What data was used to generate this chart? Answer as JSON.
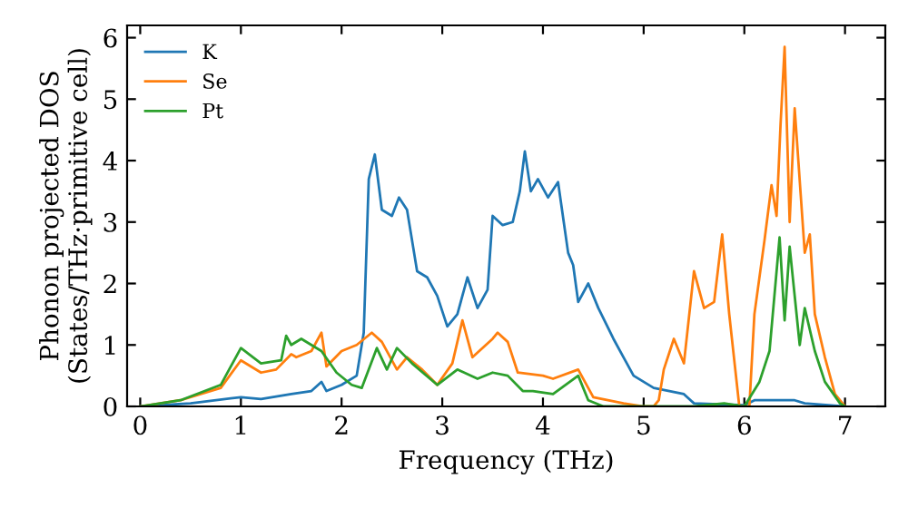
{
  "chart_data": {
    "type": "line",
    "xlabel": "Frequency (THz)",
    "ylabel": "Phonon projected DOS\n(States/THz·primitive cell)",
    "xlim": [
      -0.13,
      7.4
    ],
    "ylim": [
      0,
      6.2
    ],
    "xticks": [
      0,
      1,
      2,
      3,
      4,
      5,
      6,
      7
    ],
    "yticks": [
      0,
      1,
      2,
      3,
      4,
      5,
      6
    ],
    "grid": false,
    "legend": "top left",
    "line_style": "solid",
    "marker": "none",
    "series": [
      {
        "name": "K",
        "color": "#1f77b4",
        "x": [
          0,
          0.5,
          1.0,
          1.2,
          1.5,
          1.7,
          1.8,
          1.85,
          2.0,
          2.15,
          2.22,
          2.27,
          2.33,
          2.4,
          2.5,
          2.57,
          2.65,
          2.75,
          2.85,
          2.95,
          3.05,
          3.15,
          3.25,
          3.35,
          3.45,
          3.5,
          3.6,
          3.7,
          3.77,
          3.82,
          3.88,
          3.95,
          4.05,
          4.15,
          4.25,
          4.3,
          4.35,
          4.45,
          4.55,
          4.7,
          4.8,
          4.9,
          5.1,
          5.4,
          5.5,
          6.0,
          6.1,
          6.5,
          6.6,
          7.0
        ],
        "values": [
          0,
          0.05,
          0.15,
          0.12,
          0.2,
          0.25,
          0.4,
          0.25,
          0.35,
          0.5,
          1.2,
          3.7,
          4.1,
          3.2,
          3.1,
          3.4,
          3.2,
          2.2,
          2.1,
          1.8,
          1.3,
          1.5,
          2.1,
          1.6,
          1.9,
          3.1,
          2.95,
          3.0,
          3.5,
          4.15,
          3.5,
          3.7,
          3.4,
          3.65,
          2.5,
          2.3,
          1.7,
          2.0,
          1.6,
          1.1,
          0.8,
          0.5,
          0.3,
          0.2,
          0.05,
          0.02,
          0.1,
          0.1,
          0.05,
          0
        ]
      },
      {
        "name": "Se",
        "color": "#ff7f0e",
        "x": [
          0,
          0.4,
          0.8,
          1.0,
          1.2,
          1.35,
          1.5,
          1.55,
          1.7,
          1.8,
          1.85,
          2.0,
          2.15,
          2.3,
          2.4,
          2.55,
          2.65,
          2.8,
          2.95,
          3.1,
          3.2,
          3.3,
          3.5,
          3.55,
          3.65,
          3.75,
          4.0,
          4.1,
          4.35,
          4.5,
          4.8,
          5.0,
          5.1,
          5.15,
          5.2,
          5.3,
          5.4,
          5.5,
          5.6,
          5.7,
          5.78,
          5.85,
          5.95,
          6.05,
          6.1,
          6.2,
          6.27,
          6.32,
          6.36,
          6.4,
          6.45,
          6.5,
          6.6,
          6.65,
          6.7,
          6.8,
          6.9,
          7.0
        ],
        "values": [
          0,
          0.1,
          0.3,
          0.75,
          0.55,
          0.6,
          0.85,
          0.8,
          0.9,
          1.2,
          0.65,
          0.9,
          1.0,
          1.2,
          1.05,
          0.6,
          0.8,
          0.6,
          0.35,
          0.7,
          1.4,
          0.8,
          1.1,
          1.2,
          1.05,
          0.55,
          0.5,
          0.45,
          0.6,
          0.15,
          0.05,
          0,
          0,
          0.1,
          0.6,
          1.1,
          0.7,
          2.2,
          1.6,
          1.7,
          2.8,
          1.5,
          0,
          0,
          1.5,
          2.7,
          3.6,
          3.1,
          4.6,
          5.85,
          3.0,
          4.85,
          2.5,
          2.8,
          1.5,
          0.8,
          0.2,
          0
        ]
      },
      {
        "name": "Pt",
        "color": "#2ca02c",
        "x": [
          0,
          0.4,
          0.8,
          1.0,
          1.2,
          1.4,
          1.45,
          1.5,
          1.6,
          1.8,
          1.95,
          2.1,
          2.2,
          2.35,
          2.45,
          2.55,
          2.7,
          2.95,
          3.15,
          3.35,
          3.5,
          3.65,
          3.8,
          3.9,
          4.1,
          4.35,
          4.45,
          4.6,
          5.5,
          5.8,
          6.0,
          6.15,
          6.25,
          6.35,
          6.4,
          6.45,
          6.55,
          6.6,
          6.7,
          6.8,
          6.95,
          7.0
        ],
        "values": [
          0,
          0.1,
          0.35,
          0.95,
          0.7,
          0.75,
          1.15,
          1.0,
          1.1,
          0.9,
          0.55,
          0.35,
          0.3,
          0.95,
          0.6,
          0.95,
          0.7,
          0.35,
          0.6,
          0.45,
          0.55,
          0.5,
          0.25,
          0.25,
          0.2,
          0.5,
          0.1,
          0,
          0,
          0.05,
          0,
          0.4,
          0.9,
          2.75,
          1.4,
          2.6,
          1.0,
          1.6,
          0.9,
          0.4,
          0.05,
          0
        ]
      }
    ]
  }
}
